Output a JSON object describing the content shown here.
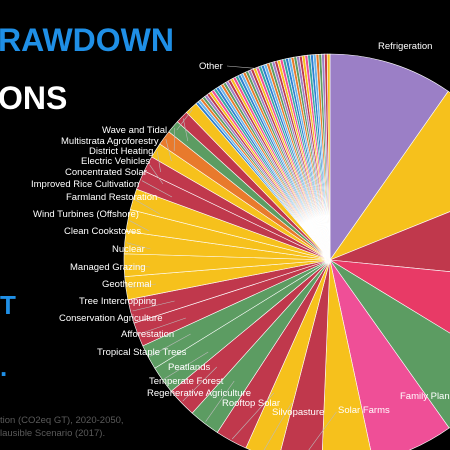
{
  "header": {
    "title_line1": "RAWDOWN",
    "title_line2": "ONS",
    "side_letter": "T",
    "side_mark": "."
  },
  "footnote": {
    "line1": "tion (CO2eq GT), 2020-2050,",
    "line2": "lausible Scenario (2017)."
  },
  "chart_data": {
    "type": "pie",
    "title": "",
    "labels": [
      "Refrigeration",
      "",
      "",
      "",
      "",
      "Family Planning",
      "Solar Farms",
      "Silvopasture",
      "Rooftop Solar",
      "Regenerative Agriculture",
      "Temperate Forest",
      "Peatlands",
      "Tropical Staple Trees",
      "Afforestation",
      "Conservation Agriculture",
      "Tree Intercropping",
      "Geothermal",
      "Managed Grazing",
      "Nuclear",
      "Clean Cookstoves",
      "Wind Turbines (Offshore)",
      "Farmland Restoration",
      "Improved Rice Cultivation",
      "Concentrated Solar",
      "Electric Vehicles",
      "District Heating",
      "Multistrata Agroforestry",
      "Wave and Tidal",
      "Other"
    ],
    "values": [
      89.7,
      84.6,
      70.5,
      66.1,
      59.6,
      59.6,
      36.9,
      31.2,
      24.6,
      23.2,
      22.6,
      21.6,
      20.2,
      18.1,
      17.4,
      17.2,
      16.6,
      16.3,
      16.1,
      15.8,
      15.2,
      14.1,
      11.3,
      10.9,
      10.8,
      9.4,
      9.3,
      9.2,
      104.0
    ],
    "colors": [
      "#9b7fc6",
      "#f6c11c",
      "#c0384c",
      "#e83a66",
      "#5c9c62",
      "#ef4f97",
      "#f6c11c",
      "#c0384c",
      "#f6c11c",
      "#c0384c",
      "#5c9c62",
      "#c0384c",
      "#5c9c62",
      "#5c9c62",
      "#c0384c",
      "#c0384c",
      "#f6c11c",
      "#f6c11c",
      "#f6c11c",
      "#f6c11c",
      "#f6c11c",
      "#c0384c",
      "#c0384c",
      "#f6c11c",
      "#e87a2c",
      "#5c9c62",
      "#c0384c",
      "#f6c11c",
      "#5c9c62"
    ],
    "other_palette": [
      "#2e7fd1",
      "#6bb3e8",
      "#e87a2c",
      "#5c9c62",
      "#9b7fc6",
      "#c0384c",
      "#f6c11c",
      "#ef4f97",
      "#35a7a0"
    ],
    "label_placement": "outside"
  }
}
